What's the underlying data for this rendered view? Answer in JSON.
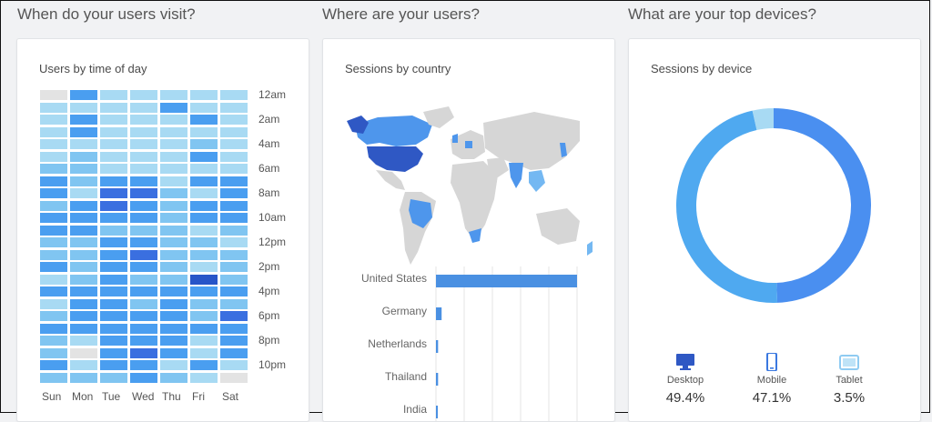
{
  "sections": {
    "visit_title": "When do your users visit?",
    "where_title": "Where are your users?",
    "devices_title": "What are your top devices?"
  },
  "heatmap": {
    "title": "Users by time of day",
    "days": [
      "Sun",
      "Mon",
      "Tue",
      "Wed",
      "Thu",
      "Fri",
      "Sat"
    ],
    "hour_labels": [
      "12am",
      "2am",
      "4am",
      "6am",
      "8am",
      "10am",
      "12pm",
      "2pm",
      "4pm",
      "6pm",
      "8pm",
      "10pm"
    ],
    "palette": [
      "#e3e3e3",
      "#a8daf3",
      "#80c5f1",
      "#4a9ef0",
      "#3a6fe0",
      "#2855c8"
    ],
    "levels": [
      [
        0,
        3,
        1,
        1,
        1,
        1,
        1
      ],
      [
        1,
        1,
        1,
        1,
        3,
        1,
        1
      ],
      [
        1,
        3,
        1,
        1,
        1,
        3,
        1
      ],
      [
        1,
        3,
        1,
        1,
        1,
        1,
        1
      ],
      [
        1,
        1,
        1,
        1,
        1,
        2,
        1
      ],
      [
        1,
        2,
        1,
        1,
        1,
        3,
        1
      ],
      [
        2,
        2,
        1,
        1,
        1,
        1,
        1
      ],
      [
        3,
        2,
        3,
        3,
        1,
        3,
        3
      ],
      [
        3,
        1,
        4,
        4,
        2,
        1,
        3
      ],
      [
        2,
        3,
        4,
        3,
        2,
        3,
        3
      ],
      [
        3,
        3,
        3,
        3,
        2,
        3,
        3
      ],
      [
        3,
        3,
        2,
        2,
        2,
        1,
        2
      ],
      [
        2,
        2,
        3,
        3,
        2,
        2,
        1
      ],
      [
        2,
        2,
        3,
        4,
        2,
        2,
        2
      ],
      [
        3,
        2,
        3,
        3,
        2,
        1,
        2
      ],
      [
        1,
        2,
        3,
        2,
        2,
        5,
        2
      ],
      [
        3,
        3,
        3,
        3,
        3,
        3,
        3
      ],
      [
        1,
        3,
        3,
        2,
        3,
        2,
        2
      ],
      [
        2,
        3,
        3,
        3,
        3,
        2,
        4
      ],
      [
        3,
        3,
        3,
        3,
        3,
        3,
        3
      ],
      [
        2,
        1,
        3,
        3,
        3,
        1,
        3
      ],
      [
        2,
        0,
        3,
        4,
        3,
        1,
        3
      ],
      [
        3,
        1,
        3,
        3,
        1,
        3,
        1
      ],
      [
        2,
        2,
        2,
        3,
        2,
        1,
        0
      ]
    ]
  },
  "country": {
    "title": "Sessions by country",
    "chart_data": {
      "type": "bar",
      "categories": [
        "United States",
        "Germany",
        "Netherlands",
        "Thailand",
        "India"
      ],
      "values": [
        100,
        4,
        1.5,
        1.5,
        1.2
      ]
    },
    "colors": {
      "bar": "#4a90e2",
      "land": "#d6d6d6",
      "dark": "#2f58c4",
      "medium": "#4e96ec",
      "light": "#74b8f2"
    }
  },
  "devices": {
    "title": "Sessions by device",
    "chart_data": {
      "type": "pie",
      "categories": [
        "Desktop",
        "Mobile",
        "Tablet"
      ],
      "values": [
        49.4,
        47.1,
        3.5
      ]
    },
    "colors": [
      "#4a8ff0",
      "#4fa9f0",
      "#a8daf3"
    ],
    "legend": [
      {
        "label": "Desktop",
        "pct": "49.4%",
        "icon": "desktop-icon"
      },
      {
        "label": "Mobile",
        "pct": "47.1%",
        "icon": "mobile-icon"
      },
      {
        "label": "Tablet",
        "pct": "3.5%",
        "icon": "tablet-icon"
      }
    ]
  }
}
